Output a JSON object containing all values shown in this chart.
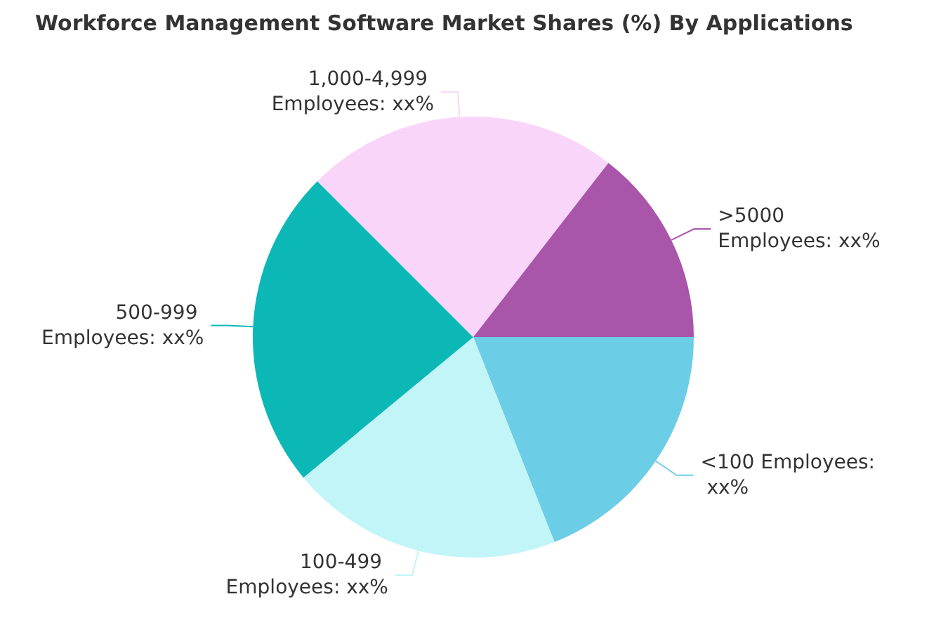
{
  "chart_data": {
    "type": "pie",
    "title": "Workforce Management Software Market Shares (%) By Applications",
    "categories": [
      "<100 Employees: xx%",
      "100-499 Employees: xx%",
      "500-999 Employees: xx%",
      "1,000-4,999 Employees: xx%",
      ">5000 Employees: xx%"
    ],
    "values": [
      19,
      20,
      23.5,
      23,
      14.5
    ],
    "colors": [
      "#6ccde6",
      "#c1f5f8",
      "#0cb8b6",
      "#f9d5f9",
      "#a855aa"
    ]
  }
}
